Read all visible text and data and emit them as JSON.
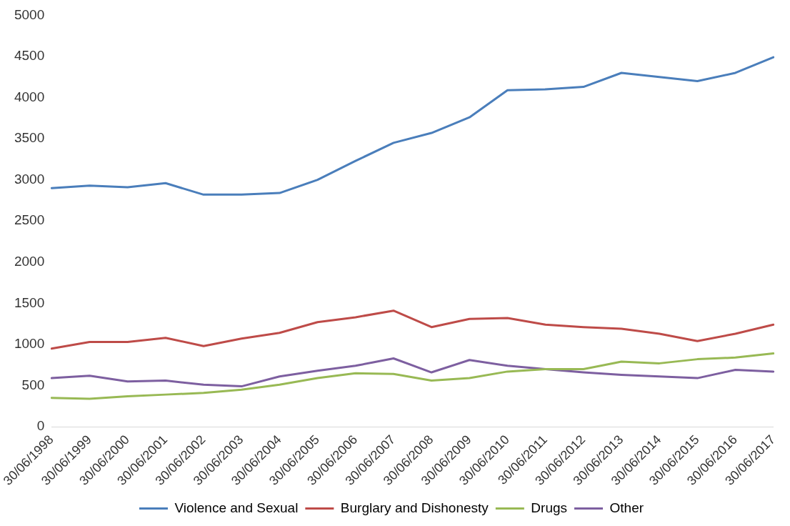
{
  "chart_data": {
    "type": "line",
    "categories": [
      "30/06/1998",
      "30/06/1999",
      "30/06/2000",
      "30/06/2001",
      "30/06/2002",
      "30/06/2003",
      "30/06/2004",
      "30/06/2005",
      "30/06/2006",
      "30/06/2007",
      "30/06/2008",
      "30/06/2009",
      "30/06/2010",
      "30/06/2011",
      "30/06/2012",
      "30/06/2013",
      "30/06/2014",
      "30/06/2015",
      "30/06/2016",
      "30/06/2017"
    ],
    "series": [
      {
        "name": "Violence and Sexual",
        "color": "#4a7ebb",
        "values": [
          2900,
          2930,
          2910,
          2960,
          2820,
          2820,
          2840,
          3000,
          3230,
          3450,
          3570,
          3760,
          4090,
          4100,
          4130,
          4300,
          4250,
          4200,
          4300,
          4490
        ]
      },
      {
        "name": "Burglary and Dishonesty",
        "color": "#be4b48",
        "values": [
          950,
          1030,
          1030,
          1080,
          980,
          1070,
          1140,
          1270,
          1330,
          1410,
          1210,
          1310,
          1320,
          1240,
          1210,
          1190,
          1130,
          1040,
          1130,
          1240
        ]
      },
      {
        "name": "Drugs",
        "color": "#98b954",
        "values": [
          350,
          340,
          370,
          390,
          410,
          450,
          510,
          590,
          650,
          640,
          560,
          590,
          670,
          700,
          700,
          790,
          770,
          820,
          840,
          890
        ]
      },
      {
        "name": "Other",
        "color": "#7d5fa0",
        "values": [
          590,
          620,
          550,
          560,
          510,
          490,
          610,
          680,
          740,
          830,
          660,
          810,
          740,
          700,
          660,
          630,
          610,
          590,
          690,
          670
        ]
      }
    ],
    "ylim": [
      0,
      5000
    ],
    "yticks": [
      0,
      500,
      1000,
      1500,
      2000,
      2500,
      3000,
      3500,
      4000,
      4500,
      5000
    ],
    "grid": false,
    "legend": "bottom",
    "marker": "none",
    "line_style": "solid"
  }
}
